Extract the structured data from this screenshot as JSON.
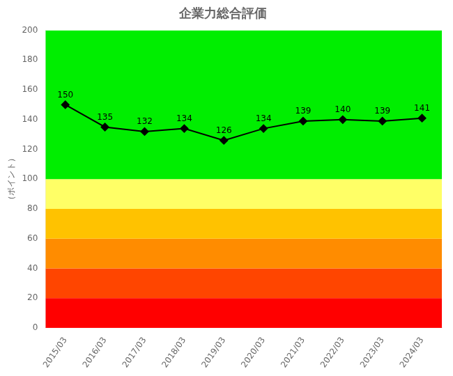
{
  "chart_data": {
    "type": "line",
    "title": "企業力総合評価",
    "ylabel": "（ポイント）",
    "categories": [
      "2015/03",
      "2016/03",
      "2017/03",
      "2018/03",
      "2019/03",
      "2020/03",
      "2021/03",
      "2022/03",
      "2023/03",
      "2024/03"
    ],
    "values": [
      150,
      135,
      132,
      134,
      126,
      134,
      139,
      140,
      139,
      141
    ],
    "color": "#000000",
    "marker": "diamond",
    "ylim": [
      0,
      200
    ],
    "yticks": [
      0,
      20,
      40,
      60,
      80,
      100,
      120,
      140,
      160,
      180,
      200
    ],
    "bands": [
      {
        "ymin": 0,
        "ymax": 20,
        "color": "#ff0000"
      },
      {
        "ymin": 20,
        "ymax": 40,
        "color": "#ff4500"
      },
      {
        "ymin": 40,
        "ymax": 60,
        "color": "#ff8c00"
      },
      {
        "ymin": 60,
        "ymax": 80,
        "color": "#ffc200"
      },
      {
        "ymin": 80,
        "ymax": 100,
        "color": "#ffff66"
      },
      {
        "ymin": 100,
        "ymax": 200,
        "color": "#00ee00"
      }
    ],
    "grid": false,
    "data_labels": true
  }
}
